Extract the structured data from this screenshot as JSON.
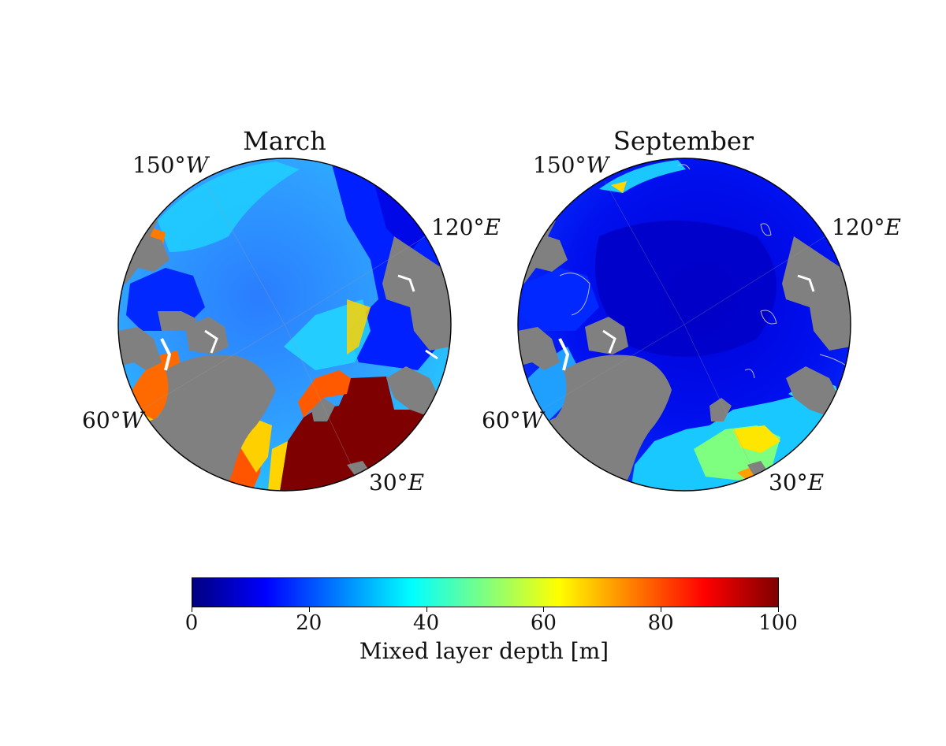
{
  "panels": [
    {
      "title": "March",
      "lon_labels": [
        {
          "deg": "150°",
          "dir": "W"
        },
        {
          "deg": "120°",
          "dir": "E"
        },
        {
          "deg": "60°",
          "dir": "W"
        },
        {
          "deg": "30°",
          "dir": "E"
        }
      ]
    },
    {
      "title": "September",
      "lon_labels": [
        {
          "deg": "150°",
          "dir": "W"
        },
        {
          "deg": "120°",
          "dir": "E"
        },
        {
          "deg": "60°",
          "dir": "W"
        },
        {
          "deg": "30°",
          "dir": "E"
        }
      ]
    }
  ],
  "colorbar": {
    "label": "Mixed layer depth [m]",
    "min": 0,
    "max": 100,
    "ticks": [
      "0",
      "20",
      "40",
      "60",
      "80",
      "100"
    ],
    "colormap": "jet",
    "colors": [
      "#00007f",
      "#0000ff",
      "#007fff",
      "#00ffff",
      "#7fff7f",
      "#ffff00",
      "#ff7f00",
      "#ff0000",
      "#7f0000"
    ]
  },
  "colors": {
    "land": "#808080",
    "ice_coast": "#ffffff",
    "frame": "#000000"
  }
}
